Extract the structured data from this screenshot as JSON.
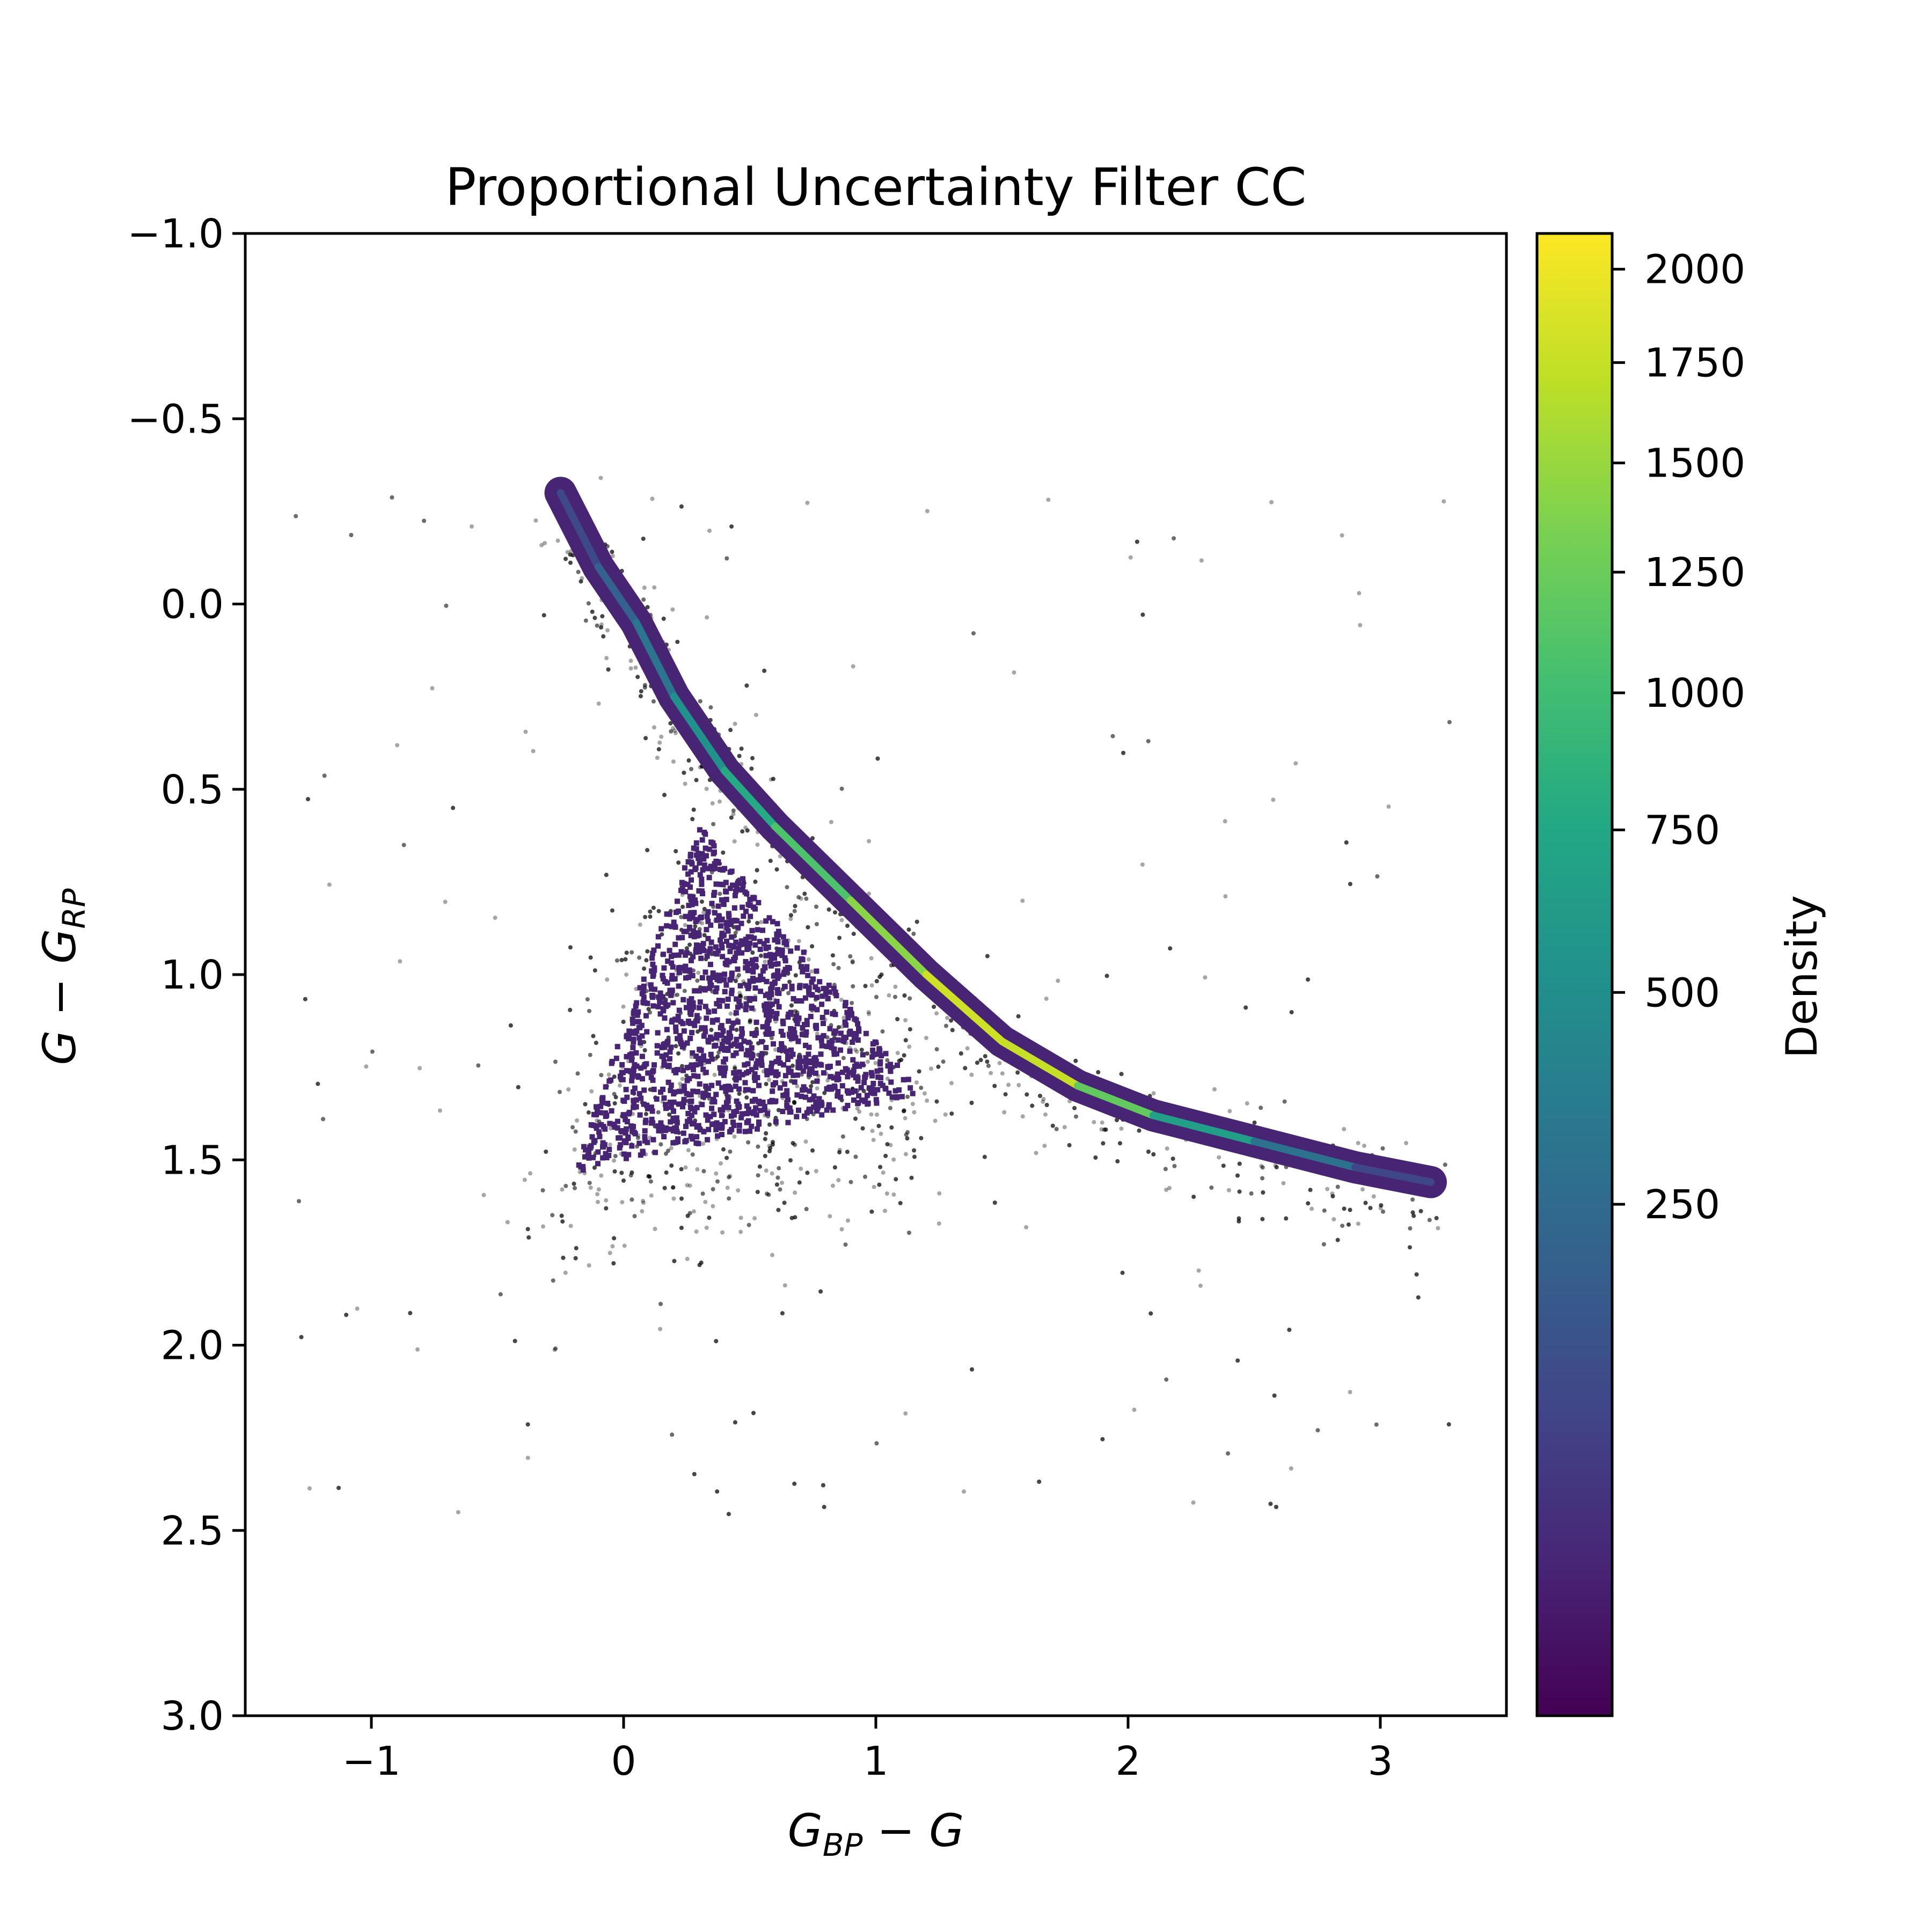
{
  "chart_data": {
    "type": "scatter",
    "subtype": "density-scatter (2D histogram over scatter)",
    "title": "Proportional Uncertainty Filter CC",
    "xlabel": {
      "main": "G",
      "sub": "BP",
      "rest": " − G"
    },
    "ylabel": {
      "main": "G − G",
      "sub": "RP"
    },
    "xlim": [
      -1.5,
      3.5
    ],
    "ylim": [
      3.0,
      -1.0
    ],
    "y_inverted": true,
    "x_ticks": [
      -1,
      0,
      1,
      2,
      3
    ],
    "x_tick_labels": [
      "−1",
      "0",
      "1",
      "2",
      "3"
    ],
    "y_ticks": [
      -1.0,
      -0.5,
      0.0,
      0.5,
      1.0,
      1.5,
      2.0,
      2.5,
      3.0
    ],
    "y_tick_labels": [
      "−1.0",
      "−0.5",
      "0.0",
      "0.5",
      "1.0",
      "1.5",
      "2.0",
      "2.5",
      "3.0"
    ],
    "grid": false,
    "colorbar": {
      "label": "Density",
      "colormap": "viridis",
      "scale": "nonlinear (approximately square-root)",
      "range": [
        0,
        2100
      ],
      "ticks": [
        250,
        500,
        750,
        1000,
        1250,
        1500,
        1750,
        2000
      ],
      "tick_labels": [
        "250",
        "500",
        "750",
        "1000",
        "1250",
        "1500",
        "1750",
        "2000"
      ]
    },
    "series": [
      {
        "description_role": "main stellar locus ridge (peak density)",
        "points": [
          {
            "x": -0.25,
            "y": -0.3,
            "density": 60
          },
          {
            "x": -0.1,
            "y": -0.1,
            "density": 150
          },
          {
            "x": 0.05,
            "y": 0.05,
            "density": 250
          },
          {
            "x": 0.2,
            "y": 0.25,
            "density": 400
          },
          {
            "x": 0.4,
            "y": 0.45,
            "density": 650
          },
          {
            "x": 0.6,
            "y": 0.6,
            "density": 900
          },
          {
            "x": 0.9,
            "y": 0.8,
            "density": 1250
          },
          {
            "x": 1.2,
            "y": 1.0,
            "density": 1600
          },
          {
            "x": 1.5,
            "y": 1.18,
            "density": 2000
          },
          {
            "x": 1.8,
            "y": 1.3,
            "density": 1500
          },
          {
            "x": 2.1,
            "y": 1.38,
            "density": 900
          },
          {
            "x": 2.5,
            "y": 1.45,
            "density": 450
          },
          {
            "x": 2.9,
            "y": 1.52,
            "density": 150
          },
          {
            "x": 3.2,
            "y": 1.56,
            "density": 40
          }
        ]
      },
      {
        "description_role": "triangular low-density core region",
        "vertices": [
          [
            0.3,
            0.6
          ],
          [
            -0.3,
            1.7
          ],
          [
            1.4,
            1.5
          ]
        ],
        "density": 120
      },
      {
        "description_role": "sparse black outlier cloud",
        "extent": {
          "x": [
            -1.5,
            3.5
          ],
          "y": [
            -0.4,
            2.6
          ]
        }
      }
    ]
  }
}
